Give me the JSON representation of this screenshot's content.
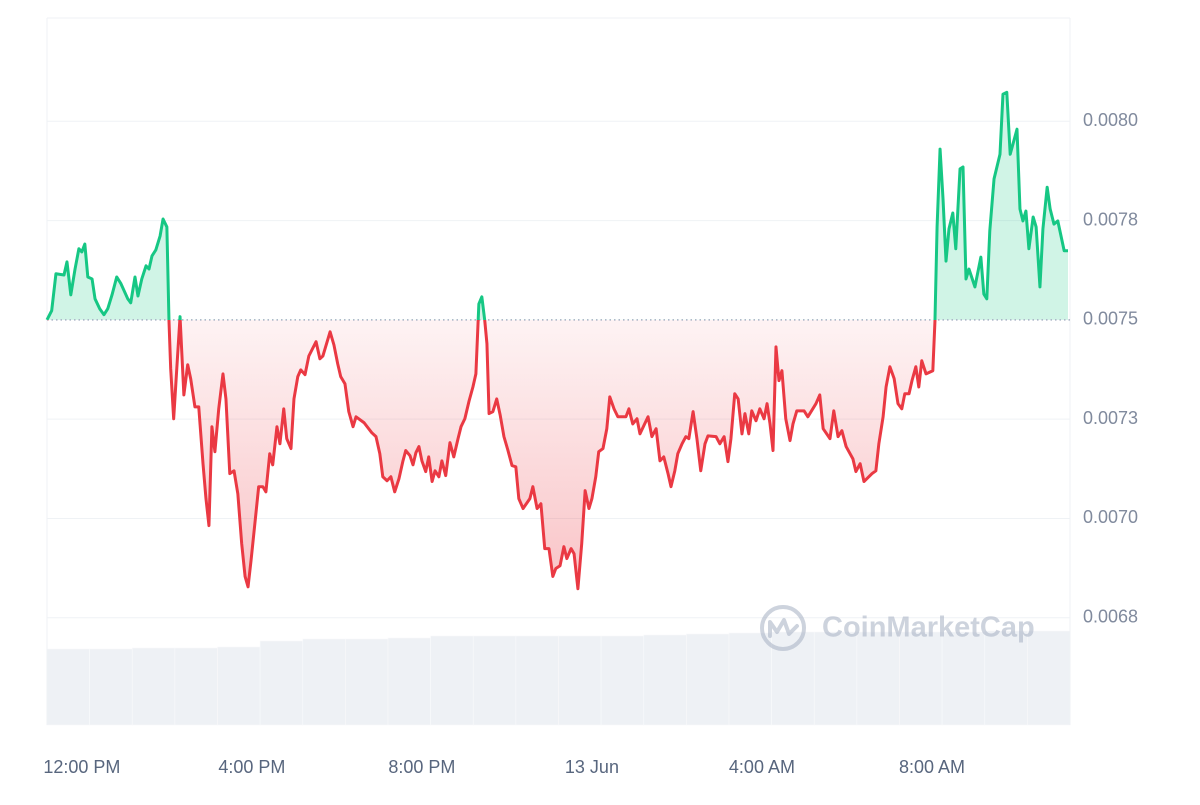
{
  "chart_data": {
    "type": "baseline-area",
    "watermark": "CoinMarketCap",
    "baseline": 0.0075,
    "colors": {
      "up": "#16c784",
      "down": "#ea3943",
      "grid": "#eff2f5",
      "baseline": "#a6b0c3"
    },
    "grid": true,
    "xlim": [
      -0.82,
      23.2
    ],
    "ylim": [
      0.00648,
      0.00826
    ],
    "xticks": [
      {
        "value": 0,
        "label": "12:00 PM"
      },
      {
        "value": 4,
        "label": "4:00 PM"
      },
      {
        "value": 8,
        "label": "8:00 PM"
      },
      {
        "value": 12,
        "label": "13 Jun"
      },
      {
        "value": 16,
        "label": "4:00 AM"
      },
      {
        "value": 20,
        "label": "8:00 AM"
      }
    ],
    "yticks": [
      {
        "value": 0.00675,
        "label": "0.0068"
      },
      {
        "value": 0.007,
        "label": "0.0070"
      },
      {
        "value": 0.00725,
        "label": "0.0073"
      },
      0.0075,
      {
        "value": 0.00775,
        "label": "0.0078"
      },
      {
        "value": 0.008,
        "label": "0.0080"
      }
    ],
    "x": [
      -0.82,
      -0.71,
      -0.61,
      -0.42,
      -0.35,
      -0.26,
      -0.16,
      -0.07,
      0,
      0.07,
      0.14,
      0.24,
      0.31,
      0.42,
      0.52,
      0.61,
      0.71,
      0.82,
      0.92,
      1.08,
      1.15,
      1.25,
      1.32,
      1.41,
      1.51,
      1.58,
      1.65,
      1.74,
      1.84,
      1.91,
      2.0,
      2.05,
      2.09,
      2.16,
      2.24,
      2.31,
      2.4,
      2.49,
      2.56,
      2.66,
      2.75,
      2.85,
      2.92,
      2.99,
      3.06,
      3.13,
      3.22,
      3.32,
      3.39,
      3.48,
      3.58,
      3.67,
      3.76,
      3.84,
      3.91,
      3.98,
      4.07,
      4.16,
      4.26,
      4.33,
      4.42,
      4.49,
      4.59,
      4.66,
      4.75,
      4.82,
      4.92,
      4.99,
      5.08,
      5.15,
      5.25,
      5.34,
      5.51,
      5.6,
      5.67,
      5.84,
      5.93,
      6.02,
      6.09,
      6.19,
      6.28,
      6.38,
      6.45,
      6.64,
      6.82,
      6.92,
      7.01,
      7.08,
      7.18,
      7.27,
      7.36,
      7.46,
      7.55,
      7.62,
      7.72,
      7.79,
      7.86,
      7.93,
      8.0,
      8.09,
      8.16,
      8.24,
      8.31,
      8.4,
      8.47,
      8.56,
      8.66,
      8.75,
      8.85,
      8.92,
      9.01,
      9.11,
      9.2,
      9.27,
      9.34,
      9.41,
      9.48,
      9.53,
      9.58,
      9.67,
      9.76,
      9.84,
      9.93,
      10.02,
      10.12,
      10.21,
      10.28,
      10.38,
      10.54,
      10.61,
      10.71,
      10.8,
      10.89,
      10.99,
      11.08,
      11.15,
      11.25,
      11.34,
      11.41,
      11.51,
      11.58,
      11.67,
      11.76,
      11.84,
      11.93,
      12.0,
      12.09,
      12.16,
      12.26,
      12.35,
      12.42,
      12.52,
      12.61,
      12.8,
      12.87,
      12.96,
      13.06,
      13.13,
      13.32,
      13.41,
      13.51,
      13.6,
      13.69,
      13.79,
      13.86,
      13.95,
      14.02,
      14.12,
      14.21,
      14.28,
      14.38,
      14.47,
      14.56,
      14.66,
      14.73,
      14.92,
      15.01,
      15.11,
      15.2,
      15.27,
      15.36,
      15.44,
      15.53,
      15.6,
      15.69,
      15.76,
      15.86,
      15.95,
      16.05,
      16.12,
      16.19,
      16.26,
      16.33,
      16.4,
      16.47,
      16.56,
      16.66,
      16.73,
      16.82,
      16.99,
      17.08,
      17.27,
      17.36,
      17.44,
      17.6,
      17.69,
      17.79,
      17.88,
      17.98,
      18.14,
      18.21,
      18.31,
      18.4,
      18.59,
      18.68,
      18.75,
      18.85,
      18.92,
      19.01,
      19.11,
      19.2,
      19.29,
      19.36,
      19.46,
      19.53,
      19.62,
      19.69,
      19.76,
      19.86,
      20.02,
      20.07,
      20.12,
      20.19,
      20.26,
      20.33,
      20.4,
      20.49,
      20.56,
      20.66,
      20.73,
      20.8,
      20.87,
      21.01,
      21.15,
      21.22,
      21.29,
      21.36,
      21.46,
      21.6,
      21.67,
      21.76,
      21.84,
      22.0,
      22.07,
      22.14,
      22.21,
      22.28,
      22.38,
      22.45,
      22.54,
      22.61,
      22.71,
      22.78,
      22.87,
      22.96,
      23.11,
      23.2
    ],
    "values": [
      0.0075,
      0.007523,
      0.007616,
      0.007613,
      0.007646,
      0.007563,
      0.007628,
      0.007679,
      0.007671,
      0.007691,
      0.007608,
      0.007603,
      0.007553,
      0.007528,
      0.007513,
      0.007528,
      0.007563,
      0.007608,
      0.007591,
      0.007553,
      0.007543,
      0.007608,
      0.00756,
      0.007603,
      0.007636,
      0.007628,
      0.007661,
      0.007676,
      0.007711,
      0.007754,
      0.007734,
      0.007497,
      0.007377,
      0.007251,
      0.007389,
      0.007508,
      0.007311,
      0.007387,
      0.007352,
      0.007281,
      0.007281,
      0.007138,
      0.00705,
      0.006982,
      0.007231,
      0.007168,
      0.007276,
      0.007364,
      0.007301,
      0.007113,
      0.00712,
      0.007062,
      0.006937,
      0.006854,
      0.006828,
      0.006894,
      0.006987,
      0.00708,
      0.00708,
      0.007067,
      0.007163,
      0.007135,
      0.007231,
      0.007188,
      0.007276,
      0.007201,
      0.007176,
      0.007301,
      0.007357,
      0.007374,
      0.007362,
      0.007409,
      0.007445,
      0.007402,
      0.007409,
      0.00747,
      0.007437,
      0.007389,
      0.007357,
      0.007339,
      0.007269,
      0.007231,
      0.007256,
      0.007241,
      0.007216,
      0.007206,
      0.007163,
      0.007105,
      0.007095,
      0.007105,
      0.007067,
      0.0071,
      0.007143,
      0.007171,
      0.007158,
      0.007135,
      0.007166,
      0.007181,
      0.007145,
      0.007118,
      0.007155,
      0.007093,
      0.00712,
      0.007105,
      0.007145,
      0.007108,
      0.007191,
      0.007155,
      0.007201,
      0.007231,
      0.007251,
      0.007296,
      0.007331,
      0.007364,
      0.00754,
      0.007558,
      0.007497,
      0.00744,
      0.007264,
      0.007269,
      0.007301,
      0.007261,
      0.007206,
      0.007173,
      0.007133,
      0.00713,
      0.00705,
      0.007025,
      0.00705,
      0.00708,
      0.007025,
      0.007037,
      0.006924,
      0.006924,
      0.006854,
      0.006874,
      0.006881,
      0.006929,
      0.006899,
      0.006924,
      0.006911,
      0.006823,
      0.006937,
      0.00707,
      0.007025,
      0.00705,
      0.007105,
      0.007168,
      0.007176,
      0.007226,
      0.007306,
      0.007276,
      0.007256,
      0.007256,
      0.007276,
      0.007238,
      0.007251,
      0.007213,
      0.007256,
      0.007206,
      0.007226,
      0.007145,
      0.007155,
      0.007113,
      0.00708,
      0.00712,
      0.007163,
      0.007188,
      0.007206,
      0.007201,
      0.007269,
      0.007201,
      0.00712,
      0.007188,
      0.007208,
      0.007206,
      0.007188,
      0.007206,
      0.007143,
      0.007201,
      0.007314,
      0.007301,
      0.007213,
      0.007264,
      0.007213,
      0.007271,
      0.007246,
      0.007276,
      0.007251,
      0.007289,
      0.007238,
      0.007171,
      0.007432,
      0.007347,
      0.007372,
      0.007251,
      0.007196,
      0.007238,
      0.007271,
      0.007271,
      0.007256,
      0.007289,
      0.007311,
      0.007226,
      0.007201,
      0.007271,
      0.007206,
      0.007221,
      0.007181,
      0.00715,
      0.007118,
      0.007138,
      0.007093,
      0.007113,
      0.00712,
      0.007188,
      0.007256,
      0.007331,
      0.007382,
      0.007352,
      0.007289,
      0.007276,
      0.007314,
      0.007314,
      0.007347,
      0.007382,
      0.007331,
      0.007397,
      0.007364,
      0.007372,
      0.007497,
      0.007734,
      0.00793,
      0.007804,
      0.007648,
      0.007729,
      0.007769,
      0.007679,
      0.00788,
      0.007885,
      0.007603,
      0.007628,
      0.007583,
      0.007658,
      0.007565,
      0.007553,
      0.007724,
      0.007855,
      0.007917,
      0.008068,
      0.008073,
      0.007917,
      0.00798,
      0.007779,
      0.007749,
      0.007774,
      0.007679,
      0.007759,
      0.007734,
      0.007583,
      0.007729,
      0.007834,
      0.007779,
      0.007741,
      0.007749,
      0.007674,
      0.007674
    ],
    "volume": {
      "color": "#eef1f5",
      "lim": [
        0,
        100
      ],
      "values": [
        76,
        76,
        77,
        77,
        78,
        84,
        86,
        86,
        87,
        89,
        89,
        89,
        89,
        89,
        90,
        91,
        92,
        93,
        93,
        93,
        93,
        93,
        94,
        94
      ]
    }
  }
}
